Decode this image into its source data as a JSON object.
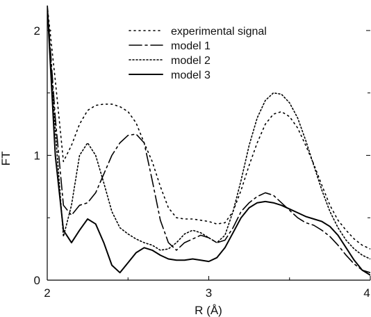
{
  "chart_data": {
    "type": "line",
    "title": "",
    "xlabel": "R (Å)",
    "ylabel": "FT",
    "xlim": [
      2,
      4
    ],
    "ylim": [
      0,
      2.2
    ],
    "x_ticks": [
      {
        "value": 2,
        "label": "2"
      },
      {
        "value": 3,
        "label": "3"
      },
      {
        "value": 4,
        "label": "4"
      }
    ],
    "x_minor_ticks": [
      2.5,
      3.5
    ],
    "y_ticks": [
      {
        "value": 0,
        "label": "0"
      },
      {
        "value": 1,
        "label": "1"
      },
      {
        "value": 2,
        "label": "2"
      }
    ],
    "y_minor_ticks": [
      0.5,
      1.5
    ],
    "grid": false,
    "legend_position": "top-center",
    "series": [
      {
        "name": "experimental signal",
        "style": "dotted-sparse",
        "x": [
          2.0,
          2.05,
          2.1,
          2.15,
          2.2,
          2.25,
          2.3,
          2.35,
          2.4,
          2.45,
          2.5,
          2.55,
          2.6,
          2.65,
          2.7,
          2.75,
          2.8,
          2.85,
          2.9,
          2.95,
          3.0,
          3.05,
          3.1,
          3.15,
          3.2,
          3.25,
          3.3,
          3.35,
          3.4,
          3.45,
          3.5,
          3.55,
          3.6,
          3.65,
          3.7,
          3.75,
          3.8,
          3.85,
          3.9,
          3.95,
          4.0
        ],
        "y": [
          2.2,
          1.6,
          0.95,
          1.08,
          1.25,
          1.36,
          1.4,
          1.41,
          1.41,
          1.39,
          1.35,
          1.26,
          1.1,
          0.95,
          0.75,
          0.58,
          0.5,
          0.49,
          0.49,
          0.48,
          0.47,
          0.45,
          0.46,
          0.55,
          0.72,
          0.92,
          1.1,
          1.25,
          1.33,
          1.35,
          1.31,
          1.22,
          1.08,
          0.93,
          0.76,
          0.6,
          0.48,
          0.4,
          0.33,
          0.28,
          0.25
        ]
      },
      {
        "name": "model 1",
        "style": "long-dash-dot",
        "x": [
          2.0,
          2.05,
          2.1,
          2.15,
          2.2,
          2.25,
          2.3,
          2.35,
          2.4,
          2.45,
          2.5,
          2.55,
          2.6,
          2.65,
          2.7,
          2.75,
          2.8,
          2.85,
          2.9,
          2.95,
          3.0,
          3.05,
          3.1,
          3.15,
          3.2,
          3.25,
          3.3,
          3.35,
          3.4,
          3.45,
          3.5,
          3.55,
          3.6,
          3.65,
          3.7,
          3.75,
          3.8,
          3.85,
          3.9,
          3.95,
          4.0
        ],
        "y": [
          2.2,
          1.3,
          0.6,
          0.52,
          0.6,
          0.62,
          0.7,
          0.85,
          1.0,
          1.1,
          1.16,
          1.17,
          1.1,
          0.8,
          0.48,
          0.3,
          0.24,
          0.3,
          0.33,
          0.36,
          0.34,
          0.3,
          0.32,
          0.42,
          0.55,
          0.62,
          0.67,
          0.7,
          0.68,
          0.62,
          0.56,
          0.5,
          0.46,
          0.44,
          0.4,
          0.35,
          0.28,
          0.2,
          0.13,
          0.08,
          0.06
        ]
      },
      {
        "name": "model 2",
        "style": "dotted-dense",
        "x": [
          2.0,
          2.05,
          2.1,
          2.15,
          2.2,
          2.25,
          2.3,
          2.35,
          2.4,
          2.45,
          2.5,
          2.55,
          2.6,
          2.65,
          2.7,
          2.75,
          2.8,
          2.85,
          2.9,
          2.95,
          3.0,
          3.05,
          3.1,
          3.15,
          3.2,
          3.25,
          3.3,
          3.35,
          3.4,
          3.45,
          3.5,
          3.55,
          3.6,
          3.65,
          3.7,
          3.75,
          3.8,
          3.85,
          3.9,
          3.95,
          4.0
        ],
        "y": [
          2.2,
          1.2,
          0.35,
          0.6,
          1.0,
          1.1,
          1.0,
          0.78,
          0.55,
          0.42,
          0.37,
          0.33,
          0.3,
          0.28,
          0.24,
          0.25,
          0.3,
          0.37,
          0.4,
          0.38,
          0.34,
          0.3,
          0.36,
          0.55,
          0.8,
          1.08,
          1.3,
          1.44,
          1.5,
          1.49,
          1.42,
          1.3,
          1.12,
          0.92,
          0.72,
          0.55,
          0.42,
          0.32,
          0.25,
          0.2,
          0.17
        ]
      },
      {
        "name": "model 3",
        "style": "solid",
        "x": [
          2.0,
          2.05,
          2.1,
          2.15,
          2.2,
          2.25,
          2.3,
          2.35,
          2.4,
          2.45,
          2.5,
          2.55,
          2.6,
          2.65,
          2.7,
          2.75,
          2.8,
          2.85,
          2.9,
          2.95,
          3.0,
          3.05,
          3.1,
          3.15,
          3.2,
          3.25,
          3.3,
          3.35,
          3.4,
          3.45,
          3.5,
          3.55,
          3.6,
          3.65,
          3.7,
          3.75,
          3.8,
          3.85,
          3.9,
          3.95,
          4.0
        ],
        "y": [
          2.2,
          1.0,
          0.4,
          0.3,
          0.4,
          0.49,
          0.45,
          0.3,
          0.12,
          0.06,
          0.14,
          0.22,
          0.26,
          0.24,
          0.2,
          0.17,
          0.16,
          0.16,
          0.17,
          0.16,
          0.15,
          0.18,
          0.26,
          0.38,
          0.5,
          0.58,
          0.62,
          0.63,
          0.62,
          0.6,
          0.57,
          0.54,
          0.51,
          0.49,
          0.47,
          0.43,
          0.36,
          0.26,
          0.16,
          0.08,
          0.04
        ]
      }
    ]
  }
}
